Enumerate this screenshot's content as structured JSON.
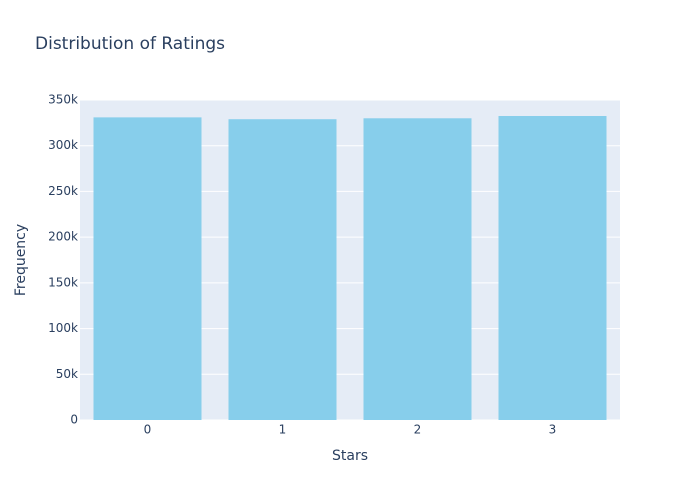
{
  "chart_data": {
    "type": "bar",
    "title": "Distribution of Ratings",
    "x_label": "Stars",
    "y_label": "Frequency",
    "categories": [
      "0",
      "1",
      "2",
      "3"
    ],
    "values": [
      331000,
      329000,
      330000,
      332500
    ],
    "color": "#87ceeb",
    "ylim": [
      0,
      350000
    ],
    "yticks": [
      0,
      {
        "value": 50000,
        "label": "50k"
      },
      {
        "value": 100000,
        "label": "100k"
      },
      {
        "value": 150000,
        "label": "150k"
      },
      {
        "value": 200000,
        "label": "200k"
      },
      {
        "value": 250000,
        "label": "250k"
      },
      {
        "value": 300000,
        "label": "300k"
      },
      {
        "value": 350000,
        "label": "350k"
      }
    ],
    "grid": true
  }
}
